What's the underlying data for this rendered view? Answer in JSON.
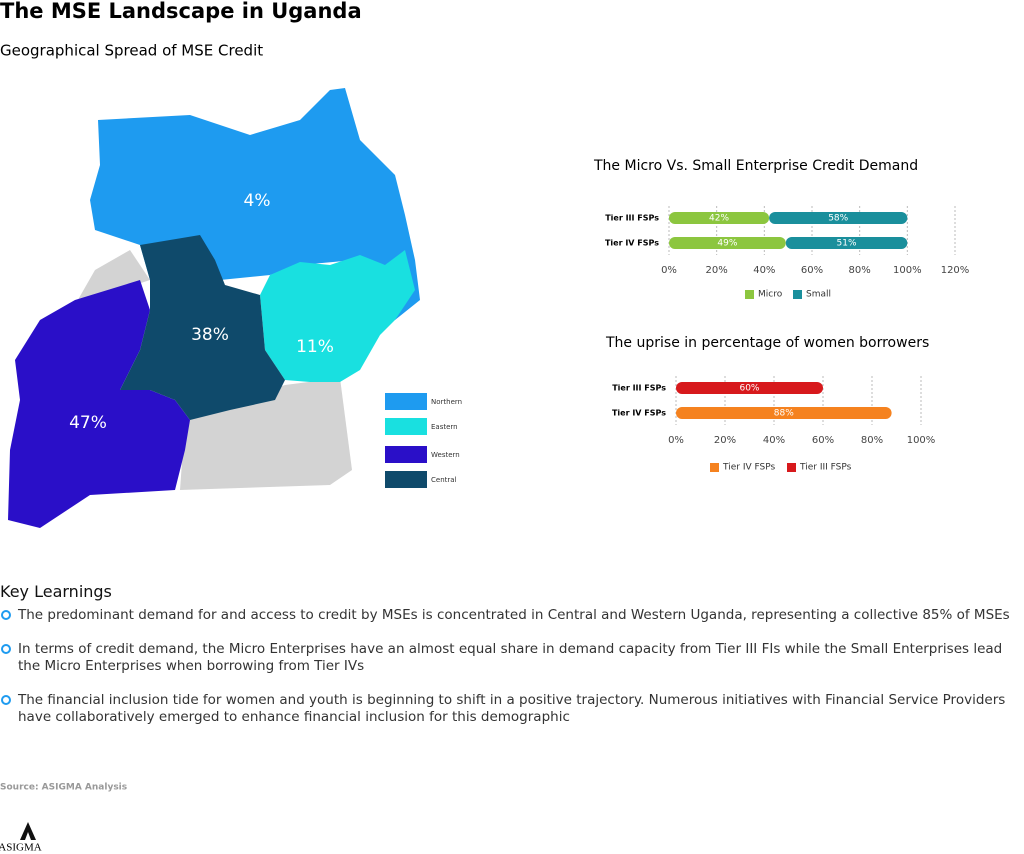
{
  "title": "The MSE Landscape in Uganda",
  "map": {
    "title": "Geographical Spread of MSE Credit",
    "regions": [
      {
        "name": "Northern",
        "color": "#1e9bf0",
        "value_label": "4%"
      },
      {
        "name": "Eastern",
        "color": "#19e0e0",
        "value_label": "11%"
      },
      {
        "name": "Western",
        "color": "#2a0fc8",
        "value_label": "47%"
      },
      {
        "name": "Central",
        "color": "#0f4a6b",
        "value_label": "38%"
      }
    ]
  },
  "chart_data": [
    {
      "type": "bar",
      "orientation": "horizontal",
      "stacked": true,
      "title": "The Micro Vs. Small Enterprise Credit Demand",
      "categories": [
        "Tier III FSPs",
        "Tier IV FSPs"
      ],
      "series": [
        {
          "name": "Micro",
          "color": "#8cc63f",
          "values": [
            42,
            49
          ],
          "value_labels": [
            "42%",
            "49%"
          ]
        },
        {
          "name": "Small",
          "color": "#1a8f9c",
          "values": [
            58,
            51
          ],
          "value_labels": [
            "58%",
            "51%"
          ]
        }
      ],
      "xlim": [
        0,
        120
      ],
      "xticks": [
        {
          "value": 0,
          "label": "0%"
        },
        {
          "value": 20,
          "label": "20%"
        },
        {
          "value": 40,
          "label": "40%"
        },
        {
          "value": 60,
          "label": "60%"
        },
        {
          "value": 80,
          "label": "80%"
        },
        {
          "value": 100,
          "label": "100%"
        },
        {
          "value": 120,
          "label": "120%"
        }
      ],
      "grid": true
    },
    {
      "type": "bar",
      "orientation": "horizontal",
      "stacked": false,
      "title": "The uprise in percentage of women borrowers",
      "categories": [
        "Tier III FSPs",
        "Tier IV FSPs"
      ],
      "series": [
        {
          "name": "Tier IV FSPs",
          "color": "#f5821f",
          "values": [
            null,
            88
          ],
          "value_labels": [
            null,
            "88%"
          ]
        },
        {
          "name": "Tier III FSPs",
          "color": "#d7191c",
          "values": [
            60,
            null
          ],
          "value_labels": [
            "60%",
            null
          ]
        }
      ],
      "xlim": [
        0,
        100
      ],
      "xticks": [
        {
          "value": 0,
          "label": "0%"
        },
        {
          "value": 20,
          "label": "20%"
        },
        {
          "value": 40,
          "label": "40%"
        },
        {
          "value": 60,
          "label": "60%"
        },
        {
          "value": 80,
          "label": "80%"
        },
        {
          "value": 100,
          "label": "100%"
        }
      ],
      "grid": true
    }
  ],
  "key_learnings": {
    "title": "Key Learnings",
    "items": [
      "The predominant demand for and access to credit by MSEs is concentrated in Central and Western Uganda, representing a collective 85% of MSEs",
      "In terms of credit demand, the Micro Enterprises have an almost equal share in demand capacity from Tier III FIs while the Small Enterprises lead the Micro Enterprises when borrowing from Tier IVs",
      "The financial inclusion tide for women and youth is beginning to shift in a positive trajectory. Numerous initiatives with Financial Service Providers have collaboratively emerged to enhance financial inclusion for this demographic"
    ]
  },
  "source": "Source: ASIGMA Analysis",
  "logo": "ASIGMA"
}
